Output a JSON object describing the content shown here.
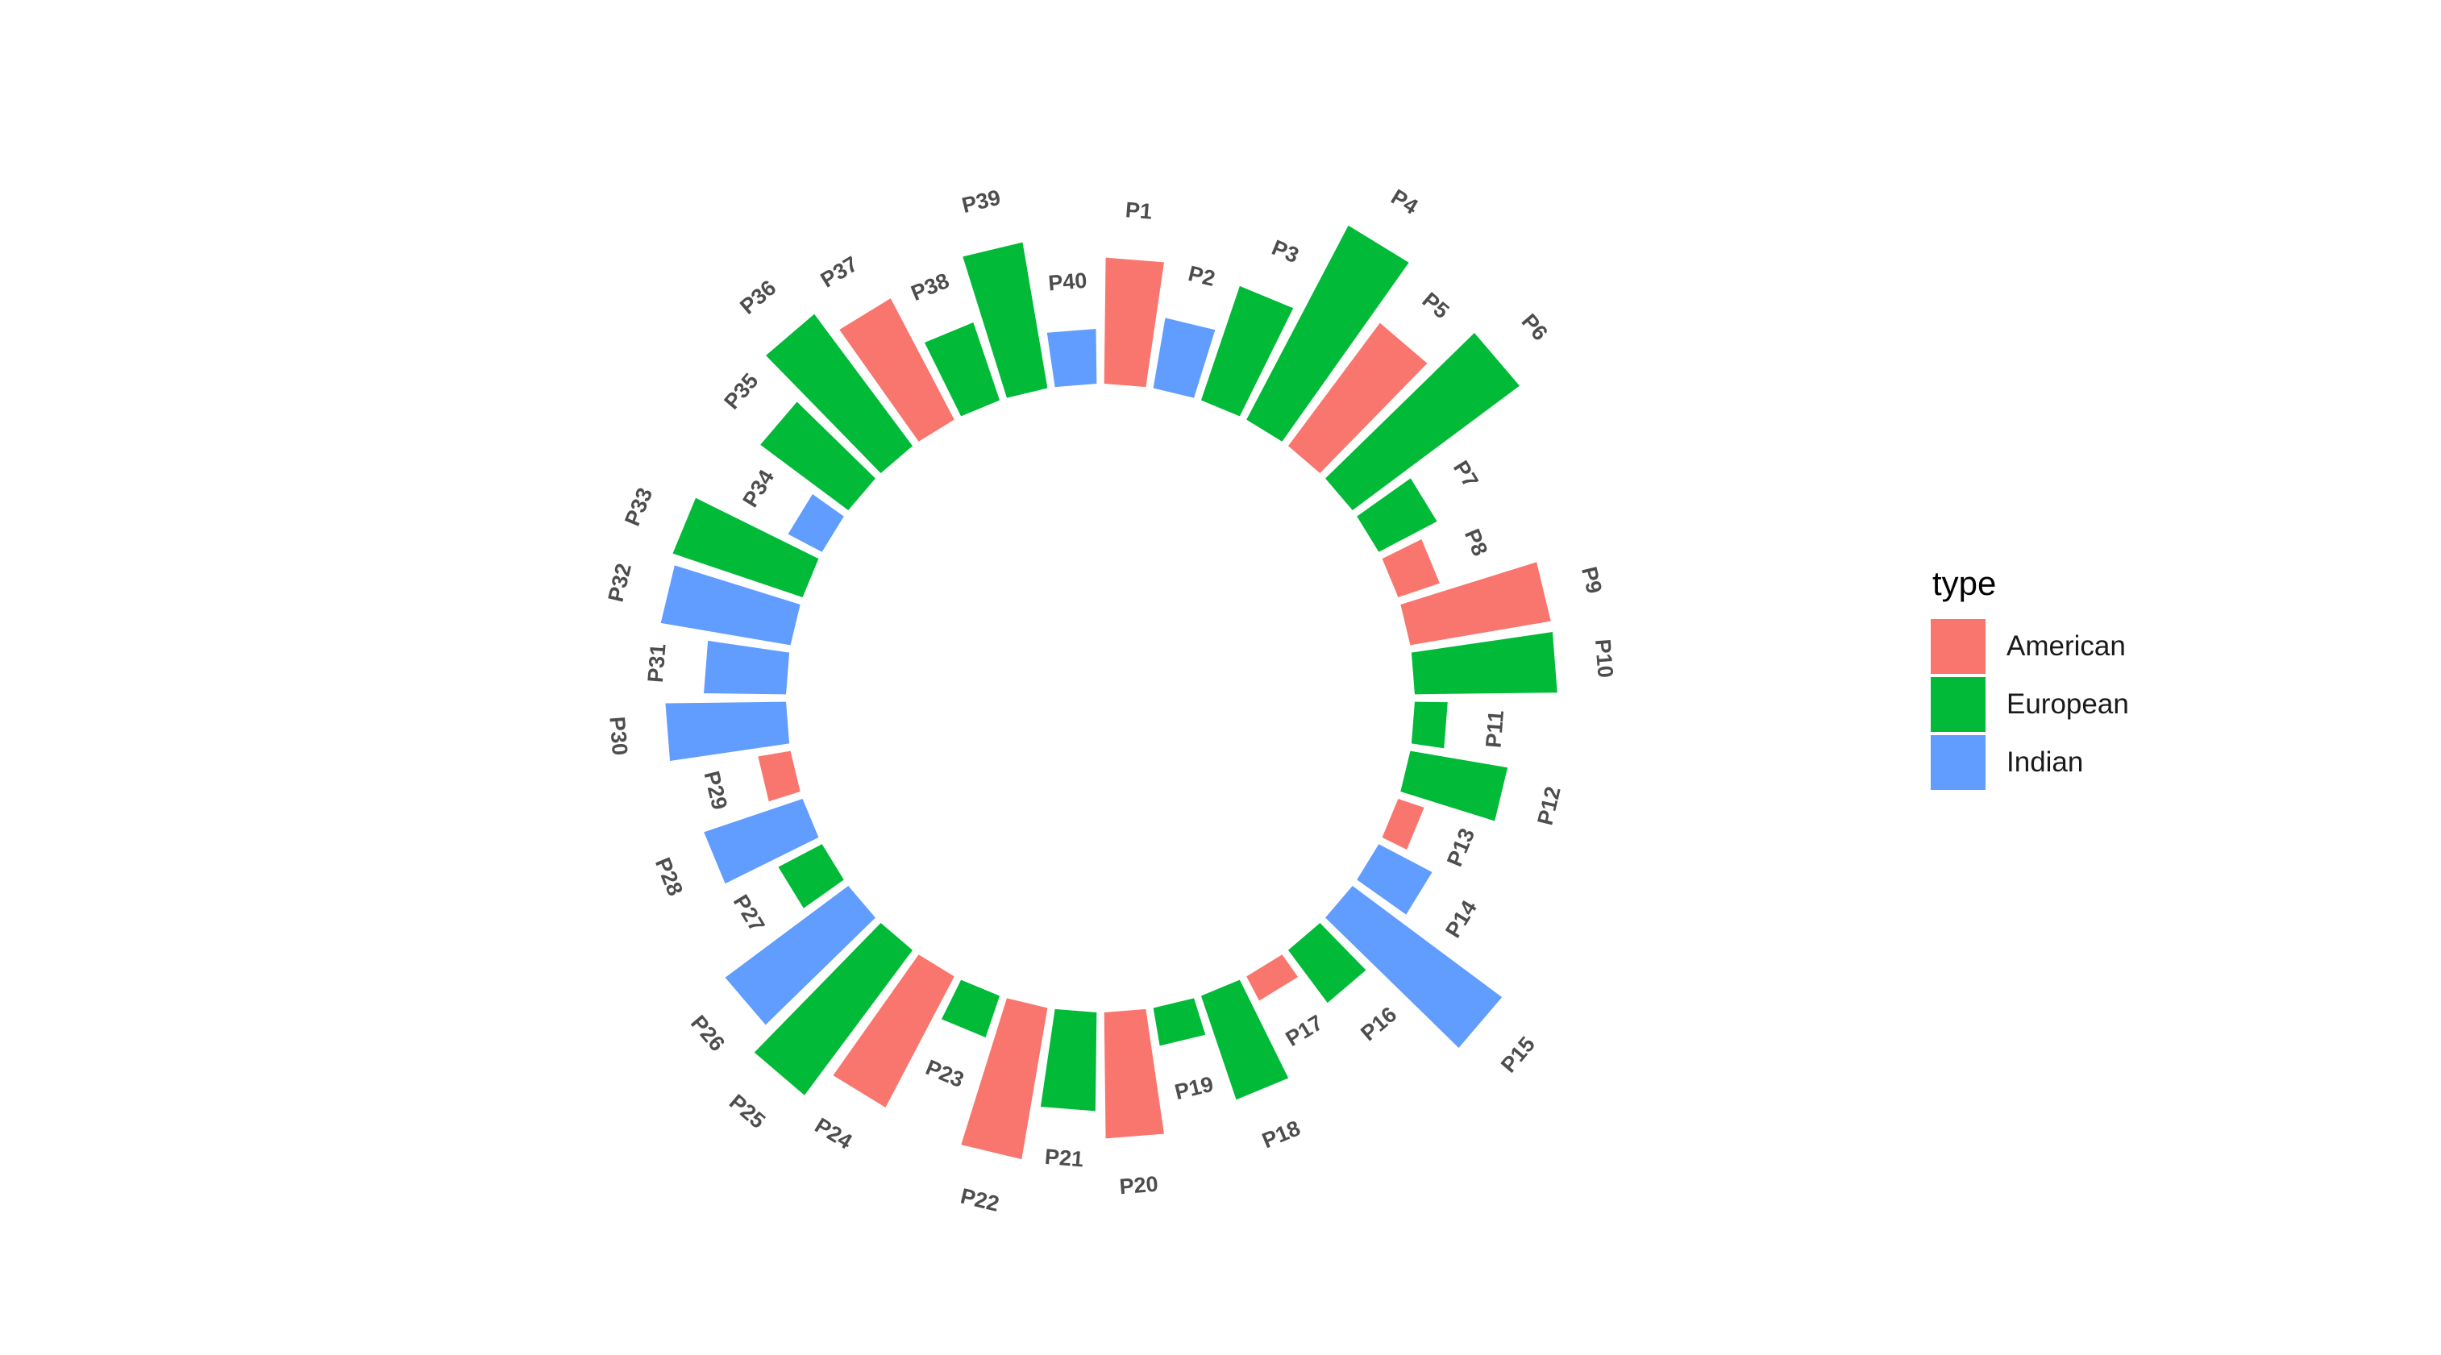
{
  "chart_data": {
    "type": "bar",
    "coord": "polar",
    "legend": {
      "title": "type",
      "position": "right"
    },
    "groups": [
      {
        "name": "American",
        "color": "#F8766D"
      },
      {
        "name": "European",
        "color": "#00BA38"
      },
      {
        "name": "Indian",
        "color": "#619CFF"
      }
    ],
    "categories": [
      "P1",
      "P2",
      "P3",
      "P4",
      "P5",
      "P6",
      "P7",
      "P8",
      "P9",
      "P10",
      "P11",
      "P12",
      "P13",
      "P14",
      "P15",
      "P16",
      "P17",
      "P18",
      "P19",
      "P20",
      "P21",
      "P22",
      "P23",
      "P24",
      "P25",
      "P26",
      "P27",
      "P28",
      "P29",
      "P30",
      "P31",
      "P32",
      "P33",
      "P34",
      "P35",
      "P36",
      "P37",
      "P38",
      "P39",
      "P40"
    ],
    "group_of": [
      "American",
      "Indian",
      "European",
      "European",
      "American",
      "European",
      "European",
      "American",
      "American",
      "European",
      "European",
      "European",
      "American",
      "Indian",
      "Indian",
      "European",
      "American",
      "European",
      "European",
      "American",
      "European",
      "American",
      "European",
      "American",
      "European",
      "Indian",
      "European",
      "Indian",
      "American",
      "Indian",
      "Indian",
      "Indian",
      "European",
      "Indian",
      "European",
      "European",
      "American",
      "European",
      "European",
      "Indian"
    ],
    "values": [
      23,
      13,
      22,
      40,
      28,
      38,
      12,
      8,
      26,
      26,
      6,
      18,
      5,
      11,
      34,
      12,
      5,
      20,
      7,
      23,
      18,
      28,
      8,
      27,
      33,
      28,
      9,
      19,
      6,
      22,
      15,
      24,
      25,
      7,
      20,
      30,
      25,
      15,
      27,
      10
    ],
    "grid": false
  }
}
